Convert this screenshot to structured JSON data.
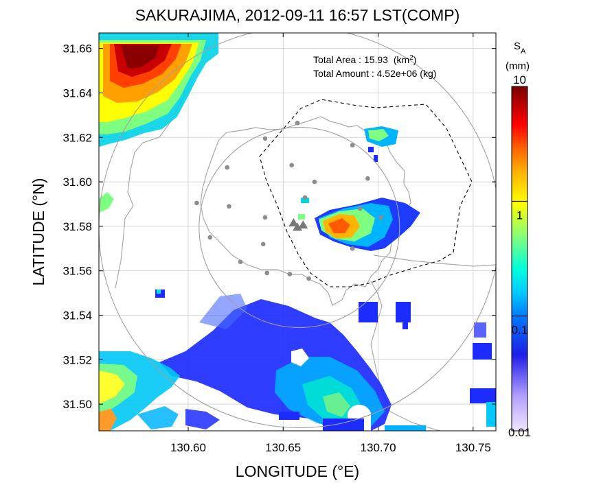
{
  "title": "SAKURAJIMA, 2012-09-11 16:57 LST(COMP)",
  "xlabel": "LONGITUDE (°E)",
  "ylabel": "LATITUDE (°N)",
  "annotation": {
    "area_label": "Total Area   : 15.93",
    "area_unit": "(km",
    "area_unit_sup": "2",
    "area_unit_close": ")",
    "amount_label": "Total Amount : 4.52e+06 (kg)"
  },
  "colorbar": {
    "symbol": "S",
    "symbol_sub": "A",
    "unit": "(mm)",
    "scale": "log",
    "ticks": [
      "10",
      "1",
      "0.1",
      "0.01"
    ],
    "tick_values": [
      10,
      1,
      0.1,
      0.01
    ],
    "colors": [
      "#f0e6ff",
      "#b4a0ff",
      "#1e1ee6",
      "#00a0ff",
      "#00ffff",
      "#7fff7f",
      "#ffff00",
      "#ff8c00",
      "#ff0000",
      "#b40000",
      "#7a0000"
    ]
  },
  "chart_data": {
    "type": "heatmap",
    "xlim": [
      130.553,
      130.762
    ],
    "ylim": [
      31.488,
      31.667
    ],
    "x_ticks": [
      "130.60",
      "130.65",
      "130.70",
      "130.75"
    ],
    "x_tick_values": [
      130.6,
      130.65,
      130.7,
      130.75
    ],
    "y_ticks": [
      "31.66",
      "31.64",
      "31.62",
      "31.60",
      "31.58",
      "31.56",
      "31.54",
      "31.52",
      "31.50"
    ],
    "y_tick_values": [
      31.66,
      31.64,
      31.62,
      31.6,
      31.58,
      31.56,
      31.54,
      31.52,
      31.5
    ],
    "grid": true,
    "vents": [
      {
        "lon": 130.6555,
        "lat": 31.5815
      },
      {
        "lon": 130.6575,
        "lat": 31.5795
      },
      {
        "lon": 130.6605,
        "lat": 31.5805
      }
    ],
    "stations": [
      {
        "lon": 130.6405,
        "lat": 31.6195
      },
      {
        "lon": 130.6575,
        "lat": 31.6265
      },
      {
        "lon": 130.6865,
        "lat": 31.6165
      },
      {
        "lon": 130.6545,
        "lat": 31.6075
      },
      {
        "lon": 130.6205,
        "lat": 31.6065
      },
      {
        "lon": 130.6665,
        "lat": 31.6
      },
      {
        "lon": 130.6615,
        "lat": 31.593
      },
      {
        "lon": 130.6945,
        "lat": 31.6015
      },
      {
        "lon": 130.6045,
        "lat": 31.5905
      },
      {
        "lon": 130.6215,
        "lat": 31.589
      },
      {
        "lon": 130.6405,
        "lat": 31.584
      },
      {
        "lon": 130.6905,
        "lat": 31.588
      },
      {
        "lon": 130.7015,
        "lat": 31.584
      },
      {
        "lon": 130.6115,
        "lat": 31.575
      },
      {
        "lon": 130.6395,
        "lat": 31.572
      },
      {
        "lon": 130.6865,
        "lat": 31.57
      },
      {
        "lon": 130.6275,
        "lat": 31.564
      },
      {
        "lon": 130.6415,
        "lat": 31.559
      },
      {
        "lon": 130.6535,
        "lat": 31.5585
      },
      {
        "lon": 130.6635,
        "lat": 31.5565
      }
    ],
    "range_rings": [
      {
        "center": [
          130.6585,
          31.5795
        ],
        "radius_km": 5
      },
      {
        "center": [
          130.6585,
          31.5795
        ],
        "radius_km": 10
      }
    ],
    "features": [
      {
        "name": "north-west ash plume",
        "peak_SA_mm": 8
      },
      {
        "name": "east-of-crater ash plume",
        "peak_SA_mm": 3
      },
      {
        "name": "south-east ash field",
        "peak_SA_mm": 0.3
      },
      {
        "name": "south-west ash field",
        "peak_SA_mm": 0.8
      }
    ]
  }
}
